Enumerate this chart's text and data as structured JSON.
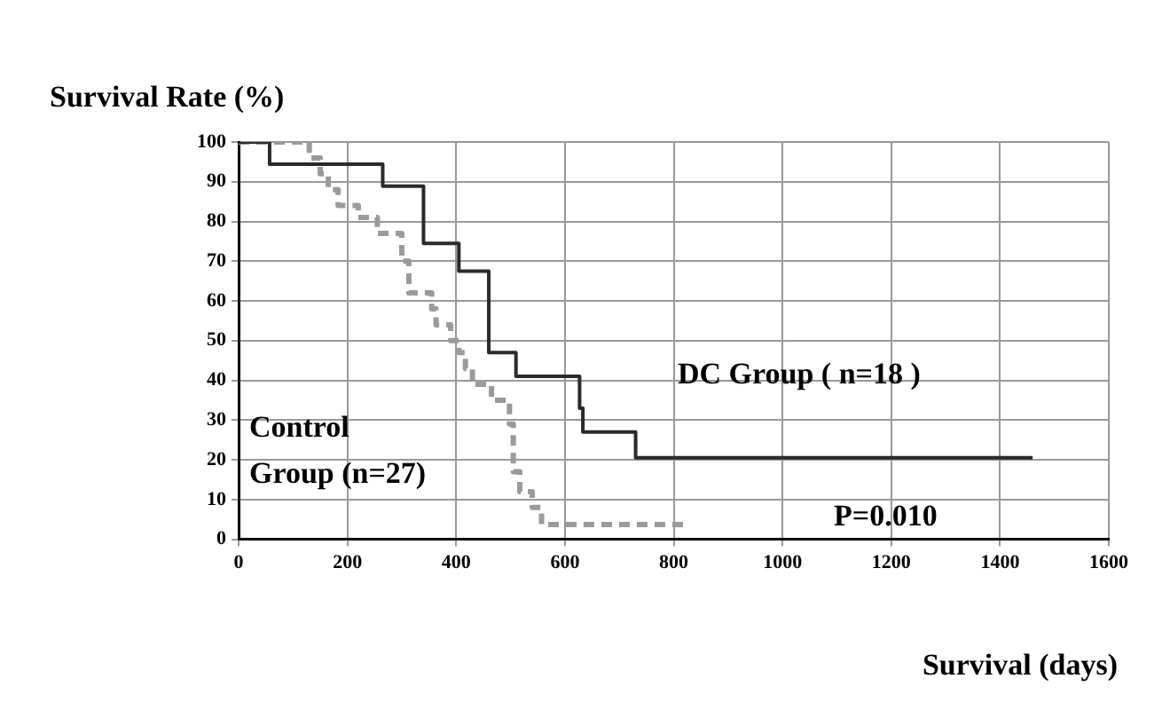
{
  "chart_data": {
    "type": "step",
    "ylabel": "Survival Rate (%)",
    "xlabel": "Survival (days)",
    "xlim": [
      0,
      1600
    ],
    "xticks": [
      0,
      200,
      400,
      600,
      800,
      1000,
      1200,
      1400,
      1600
    ],
    "ylim": [
      0,
      100
    ],
    "yticks": [
      0,
      10,
      20,
      30,
      40,
      50,
      60,
      70,
      80,
      90,
      100
    ],
    "grid": true,
    "legend": false,
    "marker": "none",
    "series": [
      {
        "name": "DC Group ( n=18 )",
        "color": "#2a2a2a",
        "line_style": "solid",
        "x": [
          0,
          57,
          265,
          340,
          405,
          460,
          510,
          627,
          633,
          730,
          1460
        ],
        "values": [
          100,
          94.4,
          88.9,
          74.5,
          67.5,
          47,
          41,
          33,
          27,
          20.5,
          20.5
        ]
      },
      {
        "name": "Control Group (n=27)",
        "color": "#9a9a9a",
        "line_style": "dashed",
        "x": [
          0,
          130,
          150,
          165,
          183,
          220,
          255,
          300,
          313,
          355,
          363,
          390,
          405,
          417,
          430,
          465,
          498,
          505,
          517,
          540,
          557,
          820
        ],
        "values": [
          100,
          96,
          92,
          88,
          84,
          81,
          77,
          70,
          62,
          58,
          54,
          50,
          47,
          43,
          39,
          35,
          29,
          17,
          12,
          8,
          3.7,
          3.7
        ]
      }
    ],
    "annotations": [
      "P=0.010"
    ]
  }
}
